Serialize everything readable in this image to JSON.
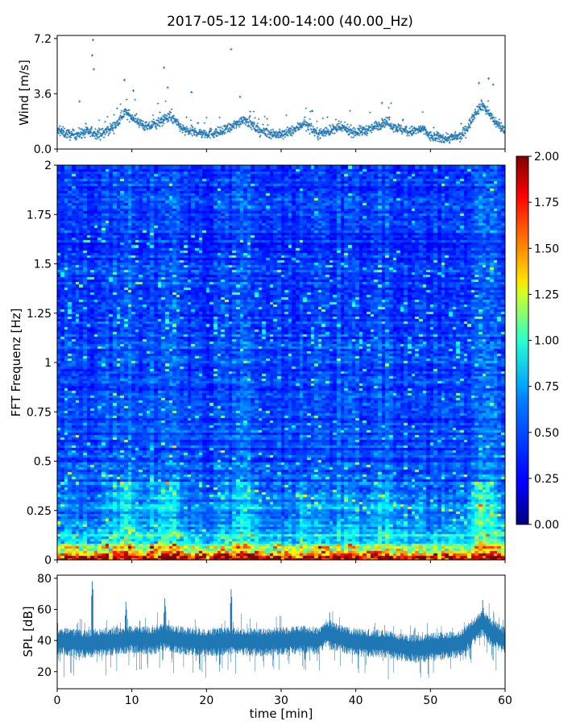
{
  "figure": {
    "title": "2017-05-12 14:00-14:00 (40.00_Hz)"
  },
  "chart_data": [
    {
      "type": "scatter",
      "panel": "wind",
      "ylabel": "Wind [m/s]",
      "ylim": [
        0,
        7.4
      ],
      "yticks": [
        "0.0",
        "3.6",
        "7.2"
      ],
      "xlim": [
        0,
        60
      ],
      "marker": "+",
      "color": "#1f77b4",
      "points_per_minute": 60,
      "baseline": [
        [
          0,
          1.2
        ],
        [
          2,
          0.9
        ],
        [
          4,
          1.1
        ],
        [
          6,
          1.0
        ],
        [
          8,
          1.6
        ],
        [
          9,
          2.4
        ],
        [
          10,
          2.1
        ],
        [
          12,
          1.4
        ],
        [
          14,
          1.8
        ],
        [
          15,
          2.2
        ],
        [
          17,
          1.2
        ],
        [
          20,
          1.0
        ],
        [
          22,
          1.1
        ],
        [
          24,
          1.6
        ],
        [
          25,
          2.0
        ],
        [
          27,
          1.2
        ],
        [
          30,
          0.9
        ],
        [
          32,
          1.3
        ],
        [
          33,
          1.7
        ],
        [
          35,
          1.0
        ],
        [
          38,
          1.4
        ],
        [
          40,
          1.1
        ],
        [
          42,
          1.3
        ],
        [
          44,
          1.8
        ],
        [
          45,
          1.5
        ],
        [
          47,
          1.1
        ],
        [
          49,
          1.3
        ],
        [
          50,
          0.8
        ],
        [
          52,
          0.7
        ],
        [
          54,
          0.8
        ],
        [
          55,
          1.4
        ],
        [
          56,
          2.4
        ],
        [
          57,
          2.9
        ],
        [
          58,
          2.2
        ],
        [
          59,
          1.6
        ],
        [
          60,
          1.2
        ]
      ],
      "peaks": [
        {
          "x": 4.8,
          "y": 7.1
        },
        {
          "x": 4.7,
          "y": 6.1
        },
        {
          "x": 4.9,
          "y": 5.2
        },
        {
          "x": 9.0,
          "y": 4.5
        },
        {
          "x": 10.2,
          "y": 3.8
        },
        {
          "x": 14.3,
          "y": 5.3
        },
        {
          "x": 14.8,
          "y": 4.0
        },
        {
          "x": 18.0,
          "y": 3.7
        },
        {
          "x": 23.3,
          "y": 6.5
        },
        {
          "x": 24.5,
          "y": 3.4
        },
        {
          "x": 43.5,
          "y": 3.0
        },
        {
          "x": 56.5,
          "y": 4.3
        },
        {
          "x": 57.8,
          "y": 4.6
        },
        {
          "x": 58.4,
          "y": 4.2
        },
        {
          "x": 3.0,
          "y": 3.1
        }
      ]
    },
    {
      "type": "heatmap",
      "panel": "spectrogram",
      "ylabel": "FFT Frequenz [Hz]",
      "ylim": [
        0,
        2
      ],
      "yticks": [
        "0",
        "0.25",
        "0.5",
        "0.75",
        "1",
        "1.25",
        "1.5",
        "1.75",
        "2"
      ],
      "xlim": [
        0,
        60
      ],
      "colormap": "jet",
      "n_time_bins": 120,
      "n_freq_bins": 160,
      "base_level": 0.3,
      "level_profile_by_frequency": [
        {
          "hz": 0.0,
          "level": 1.9
        },
        {
          "hz": 0.03,
          "level": 1.55
        },
        {
          "hz": 0.06,
          "level": 1.0
        },
        {
          "hz": 0.1,
          "level": 0.75
        },
        {
          "hz": 0.2,
          "level": 0.52
        },
        {
          "hz": 0.35,
          "level": 0.4
        },
        {
          "hz": 0.6,
          "level": 0.36
        },
        {
          "hz": 2.0,
          "level": 0.32
        }
      ],
      "colorbar": {
        "min": 0.0,
        "max": 2.0,
        "ticks": [
          "0.00",
          "0.25",
          "0.50",
          "0.75",
          "1.00",
          "1.25",
          "1.50",
          "1.75",
          "2.00"
        ]
      }
    },
    {
      "type": "line",
      "panel": "spl",
      "ylabel": "SPL [dB]",
      "xlabel": "time [min]",
      "ylim": [
        9,
        82
      ],
      "yticks": [
        "20",
        "40",
        "60",
        "80"
      ],
      "xlim": [
        0,
        60
      ],
      "xticks": [
        "0",
        "10",
        "20",
        "30",
        "40",
        "50",
        "60"
      ],
      "color": "#1f77b4",
      "baseline_db": [
        [
          0,
          40
        ],
        [
          4,
          38
        ],
        [
          5,
          39
        ],
        [
          8,
          40
        ],
        [
          10,
          41
        ],
        [
          13,
          40
        ],
        [
          14,
          43
        ],
        [
          17,
          40
        ],
        [
          20,
          39
        ],
        [
          24,
          40
        ],
        [
          27,
          39
        ],
        [
          30,
          40
        ],
        [
          33,
          41
        ],
        [
          35,
          40
        ],
        [
          36,
          45
        ],
        [
          37,
          43
        ],
        [
          40,
          39
        ],
        [
          44,
          38
        ],
        [
          46,
          36
        ],
        [
          48,
          35
        ],
        [
          50,
          36
        ],
        [
          54,
          38
        ],
        [
          56,
          47
        ],
        [
          57,
          52
        ],
        [
          58,
          46
        ],
        [
          60,
          40
        ]
      ],
      "spikes": [
        {
          "x": 4.7,
          "top": 78
        },
        {
          "x": 9.2,
          "top": 65
        },
        {
          "x": 14.4,
          "top": 67
        },
        {
          "x": 23.3,
          "top": 73
        },
        {
          "x": 36.5,
          "top": 58
        },
        {
          "x": 57.0,
          "top": 66
        }
      ],
      "band_half_width_db": 7
    }
  ]
}
